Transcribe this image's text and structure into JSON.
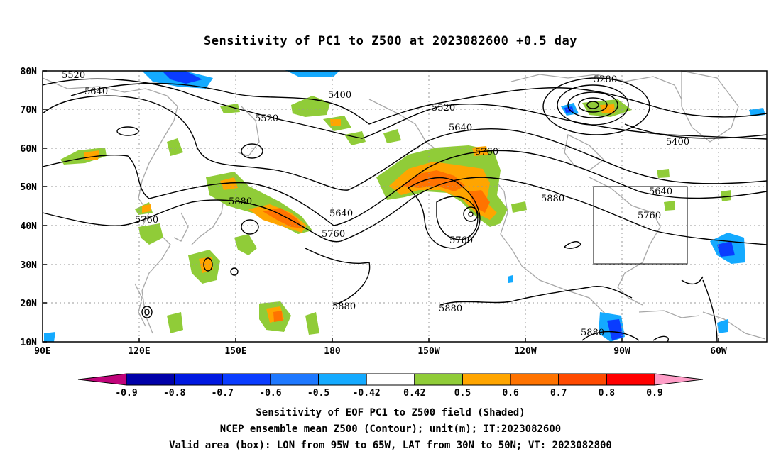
{
  "title": "Sensitivity of PC1 to Z500 at 2023082600 +0.5 day",
  "map": {
    "lat_labels": [
      "80N",
      "70N",
      "60N",
      "50N",
      "40N",
      "30N",
      "20N",
      "10N"
    ],
    "lon_labels": [
      "90E",
      "120E",
      "150E",
      "180",
      "150W",
      "120W",
      "90W",
      "60W"
    ],
    "contour_labels": [
      {
        "text": "5520"
      },
      {
        "text": "5640"
      },
      {
        "text": "5400"
      },
      {
        "text": "5520"
      },
      {
        "text": "5280"
      },
      {
        "text": "5520"
      },
      {
        "text": "5640"
      },
      {
        "text": "5760"
      },
      {
        "text": "5400"
      },
      {
        "text": "5880"
      },
      {
        "text": "5760"
      },
      {
        "text": "5640"
      },
      {
        "text": "5760"
      },
      {
        "text": "5760"
      },
      {
        "text": "5880"
      },
      {
        "text": "5640"
      },
      {
        "text": "5760"
      },
      {
        "text": "5880"
      },
      {
        "text": "5880"
      },
      {
        "text": "5880"
      }
    ],
    "valid_box": {
      "lon_west": "95W",
      "lon_east": "65W",
      "lat_south": "30N",
      "lat_north": "50N"
    }
  },
  "colorbar": {
    "labels": [
      "-0.9",
      "-0.8",
      "-0.7",
      "-0.6",
      "-0.5",
      "-0.42",
      "0.42",
      "0.5",
      "0.6",
      "0.7",
      "0.8",
      "0.9"
    ],
    "colors": [
      "#0000a8",
      "#0018e0",
      "#0a3cff",
      "#1e78ff",
      "#14aaff",
      "#ffffff",
      "#90cc38",
      "#ffa500",
      "#ff7300",
      "#ff4a00",
      "#ff0000"
    ],
    "low_end_color": "#c0047a",
    "high_end_color": "#ff9ec8"
  },
  "footer": {
    "line1": "Sensitivity of EOF PC1 to Z500 field (Shaded)",
    "line2": "NCEP ensemble mean Z500 (Contour); unit(m); IT:2023082600",
    "line3": "Valid area (box): LON from 95W to 65W, LAT from 30N to 50N; VT: 2023082800"
  }
}
